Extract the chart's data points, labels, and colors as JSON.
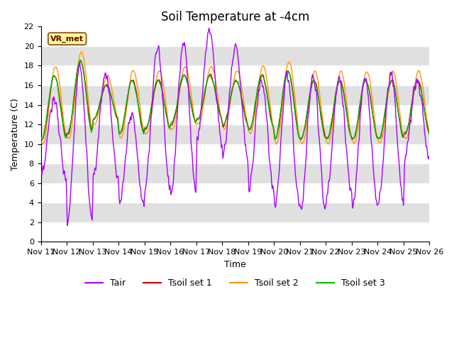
{
  "title": "Soil Temperature at -4cm",
  "xlabel": "Time",
  "ylabel": "Temperature (C)",
  "ylim": [
    0,
    22
  ],
  "yticks": [
    0,
    2,
    4,
    6,
    8,
    10,
    12,
    14,
    16,
    18,
    20,
    22
  ],
  "x_tick_labels": [
    "Nov 11",
    "Nov 12",
    "Nov 13",
    "Nov 14",
    "Nov 15",
    "Nov 16",
    "Nov 17",
    "Nov 18",
    "Nov 19",
    "Nov 20",
    "Nov 21",
    "Nov 22",
    "Nov 23",
    "Nov 24",
    "Nov 25",
    "Nov 26"
  ],
  "site_label": "VR_met",
  "site_label_bg": "#ffff99",
  "site_label_border": "#996633",
  "colors": {
    "Tair": "#aa00ff",
    "Tsoil1": "#cc0000",
    "Tsoil2": "#ff9900",
    "Tsoil3": "#00bb00"
  },
  "legend_labels": [
    "Tair",
    "Tsoil set 1",
    "Tsoil set 2",
    "Tsoil set 3"
  ],
  "bg_band_color": "#e0e0e0",
  "plot_bg": "#eeeeee",
  "title_fontsize": 12,
  "axis_fontsize": 9,
  "tick_fontsize": 8,
  "legend_fontsize": 9
}
